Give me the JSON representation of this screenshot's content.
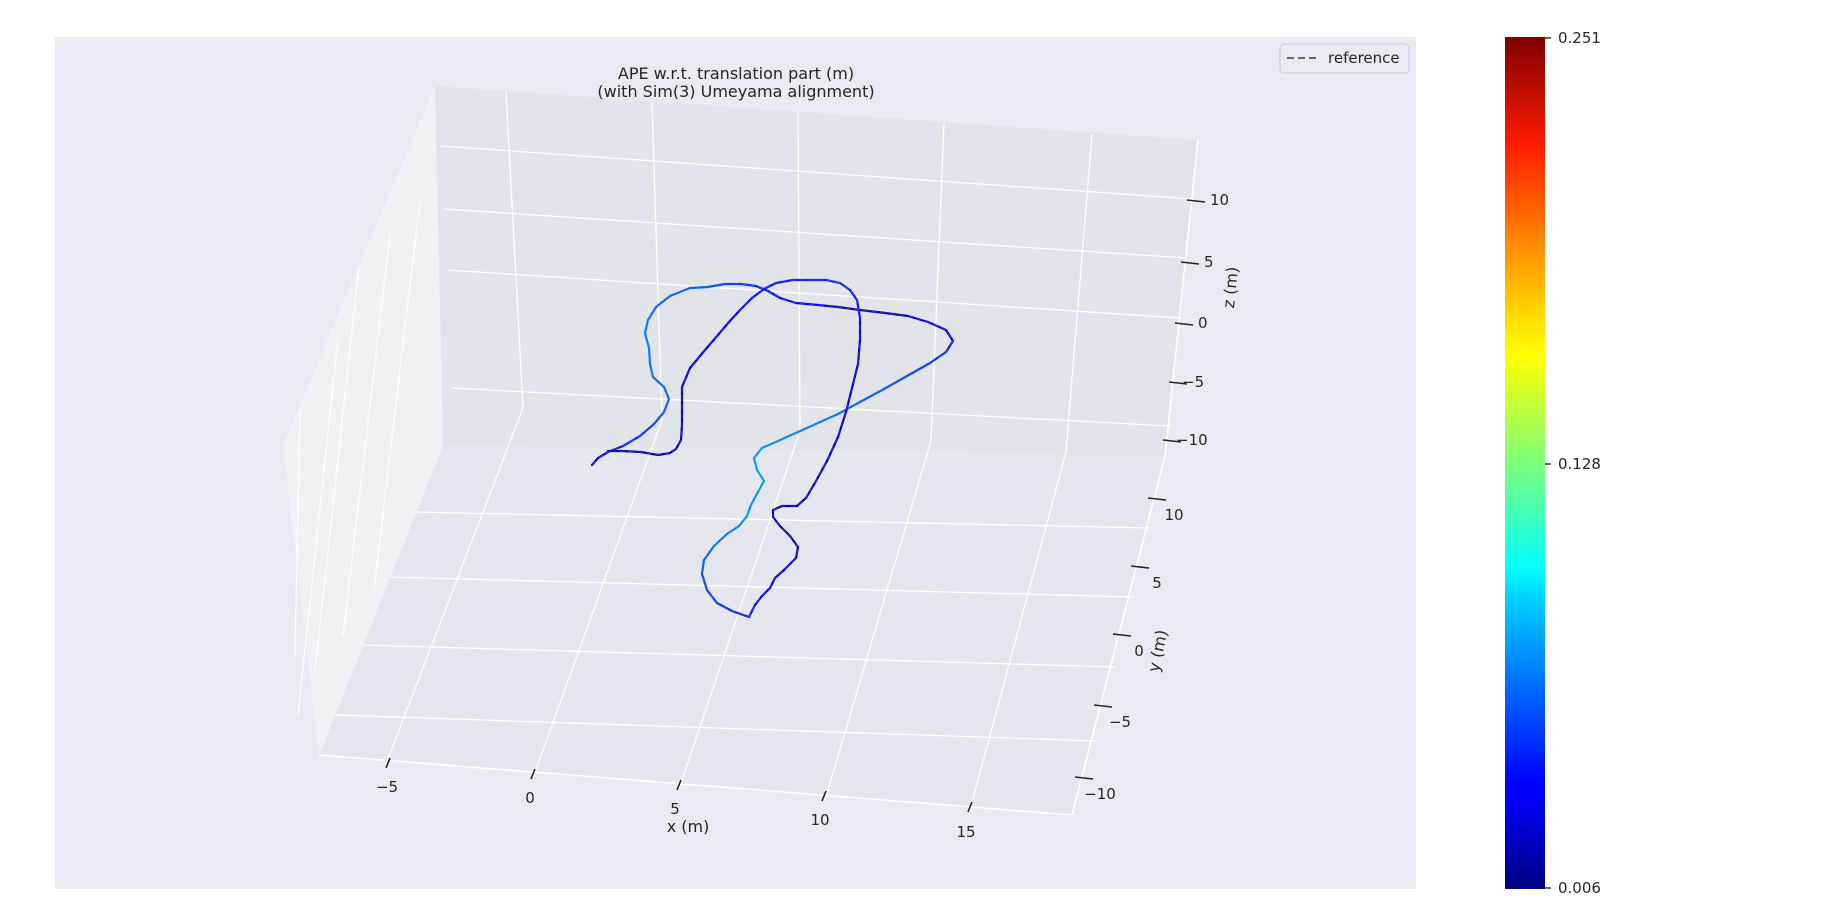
{
  "chart_data": {
    "type": "line",
    "title": "APE w.r.t. translation part (m)",
    "subtitle": "(with Sim(3) Umeyama alignment)",
    "xlabel": "x (m)",
    "ylabel": "y (m)",
    "zlabel": "z (m)",
    "x_ticks": [
      "−5",
      "0",
      "5",
      "10",
      "15"
    ],
    "x_tick_values": [
      -5,
      0,
      5,
      10,
      15
    ],
    "y_ticks": [
      "10",
      "5",
      "0",
      "−5",
      "−10"
    ],
    "y_tick_values": [
      10,
      5,
      0,
      -5,
      -10
    ],
    "z_ticks": [
      "10",
      "5",
      "0",
      "−5",
      "−10"
    ],
    "z_tick_values": [
      10,
      5,
      0,
      -5,
      -10
    ],
    "legend": {
      "entries": [
        "reference"
      ],
      "placement": "top-right",
      "style": "dashed-gray"
    },
    "colorbar": {
      "colormap": "jet",
      "min": 0.006,
      "mid": 0.128,
      "max": 0.251,
      "tick_labels": [
        "0.251",
        "0.128",
        "0.006"
      ]
    },
    "grid": true,
    "series": [
      {
        "name": "reference",
        "style": "dashed",
        "color": "#666666",
        "error_values": [
          0.03,
          0.06,
          0.07,
          0.06,
          0.04,
          0.02,
          0.05,
          0.07,
          0.08,
          0.07,
          0.05,
          0.03,
          0.02,
          0.02,
          0.03,
          0.05,
          0.04,
          0.03,
          0.02,
          0.02
        ]
      }
    ]
  },
  "colors": {
    "panel_background": "#eaeaf2",
    "grid": "#ffffff",
    "trajectory_low": "#00007f",
    "trajectory_mid": "#0a5ccf",
    "reference": "#666666"
  }
}
